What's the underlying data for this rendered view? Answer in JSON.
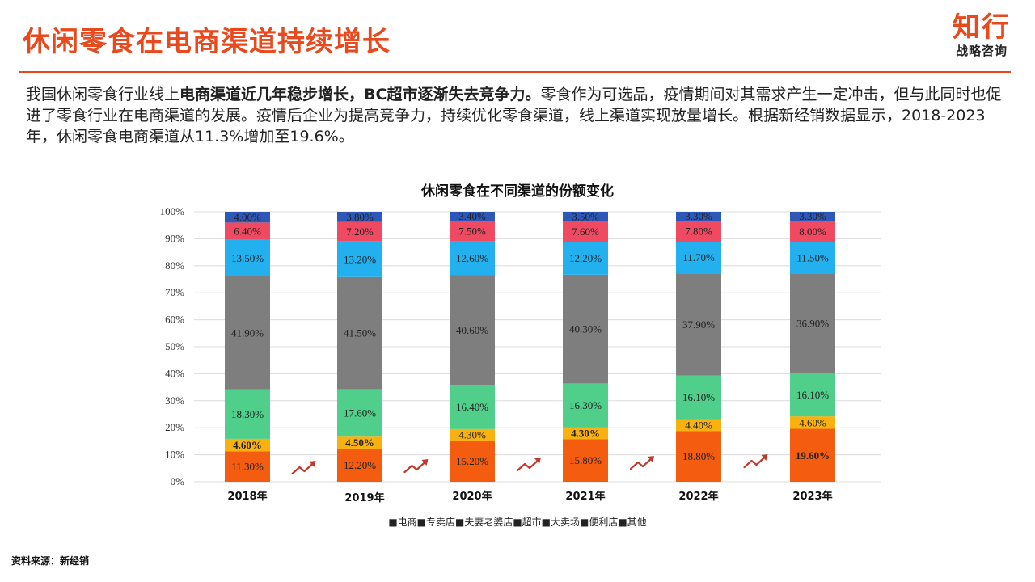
{
  "header": {
    "title": "休闲零食在电商渠道持续增长",
    "logo_main": "知行",
    "logo_sub": "战略咨询"
  },
  "intro": {
    "part1": "我国休闲零食行业线上",
    "bold": "电商渠道近几年稳步增长，BC超市逐渐失去竞争力。",
    "part2": "零食作为可选品，疫情期间对其需求产生一定冲击，但与此同时也促进了零食行业在电商渠道的发展。疫情后企业为提高竞争力，持续优化零食渠道，线上渠道实现放量增长。根据新经销数据显示，2018-2023年，休闲零食电商渠道从11.3%增加至19.6%。"
  },
  "source": "资料来源：新经销",
  "chart_data": {
    "type": "bar",
    "stacked": true,
    "title": "休闲零食在不同渠道的份额变化",
    "categories": [
      "2018年",
      "2019年",
      "2020年",
      "2021年",
      "2022年",
      "2023年"
    ],
    "ylim": [
      0,
      100
    ],
    "y_ticks": [
      "0%",
      "10%",
      "20%",
      "30%",
      "40%",
      "50%",
      "60%",
      "70%",
      "80%",
      "90%",
      "100%"
    ],
    "legend_position": "bottom",
    "legend_text": "■电商■专卖店■夫妻老婆店■超市■大卖场■便利店■其他",
    "series": [
      {
        "name": "电商",
        "color": "#f45c10",
        "values": [
          11.3,
          12.2,
          15.2,
          15.8,
          18.8,
          19.6
        ],
        "labels": [
          "11.30%",
          "12.20%",
          "15.20%",
          "15.80%",
          "18.80%",
          "19.60%"
        ]
      },
      {
        "name": "专卖店",
        "color": "#f9b10f",
        "values": [
          4.6,
          4.5,
          4.3,
          4.3,
          4.4,
          4.6
        ],
        "labels": [
          "4.60%",
          "4.50%",
          "4.30%",
          "4.30%",
          "4.40%",
          "4.60%"
        ]
      },
      {
        "name": "夫妻老婆店",
        "color": "#4fcf8a",
        "values": [
          18.3,
          17.6,
          16.4,
          16.3,
          16.1,
          16.1
        ],
        "labels": [
          "18.30%",
          "17.60%",
          "16.40%",
          "16.30%",
          "16.10%",
          "16.10%"
        ]
      },
      {
        "name": "超市",
        "color": "#7e7e7e",
        "values": [
          41.9,
          41.5,
          40.6,
          40.3,
          37.9,
          36.9
        ],
        "labels": [
          "41.90%",
          "41.50%",
          "40.60%",
          "40.30%",
          "37.90%",
          "36.90%"
        ]
      },
      {
        "name": "大卖场",
        "color": "#22b0ef",
        "values": [
          13.5,
          13.2,
          12.6,
          12.2,
          11.7,
          11.5
        ],
        "labels": [
          "13.50%",
          "13.20%",
          "12.60%",
          "12.20%",
          "11.70%",
          "11.50%"
        ]
      },
      {
        "name": "便利店",
        "color": "#ef4a62",
        "values": [
          6.4,
          7.2,
          7.5,
          7.6,
          7.8,
          8.0
        ],
        "labels": [
          "6.40%",
          "7.20%",
          "7.50%",
          "7.60%",
          "7.80%",
          "8.00%"
        ]
      },
      {
        "name": "其他",
        "color": "#2d58b8",
        "values": [
          4.0,
          3.8,
          3.4,
          3.5,
          3.3,
          3.3
        ],
        "labels": [
          "4.00%",
          "3.80%",
          "3.40%",
          "3.50%",
          "3.30%",
          "3.30%"
        ]
      }
    ],
    "bold_labels": [
      [
        0,
        1
      ],
      [
        1,
        1
      ],
      [
        3,
        1
      ],
      [
        5,
        0
      ]
    ],
    "trend_arrow_color": "#c0392b"
  }
}
